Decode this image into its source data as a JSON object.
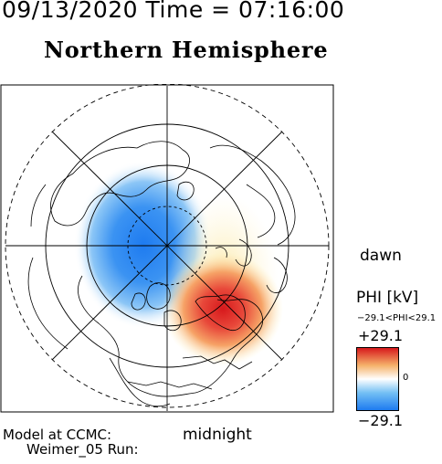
{
  "header": {
    "datetime": "09/13/2020 Time = 07:16:00",
    "hemisphere": "Northern Hemisphere"
  },
  "map": {
    "labels": {
      "dawn": "dawn",
      "midnight": "midnight"
    },
    "colors": {
      "positive": "#d7191c",
      "negative": "#1e7bf0",
      "neutral": "#ffffff"
    }
  },
  "colorbar": {
    "title": "PHI [kV]",
    "range_text": "−29.1<PHI<29.1",
    "max_label": "+29.1",
    "zero_label": "0",
    "min_label": "−29.1"
  },
  "footer": {
    "model_line1": "Model at CCMC:",
    "model_line2": "Weimer_05 Run:"
  }
}
